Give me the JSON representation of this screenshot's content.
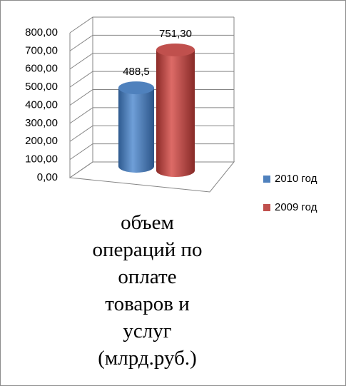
{
  "chart_data": {
    "type": "bar3d",
    "title": "объем операций по оплате товаров и услуг (млрд.руб.)",
    "categories": [
      null
    ],
    "series": [
      {
        "name": "2010 год",
        "color": "#4f81bd",
        "values": [
          488.5
        ],
        "value_labels": [
          "488,5"
        ]
      },
      {
        "name": "2009 год",
        "color": "#c0504d",
        "values": [
          751.3
        ],
        "value_labels": [
          "751,30"
        ]
      }
    ],
    "ylim": [
      0,
      800
    ],
    "yticks": [
      {
        "value": 0,
        "label": "0,00"
      },
      {
        "value": 100,
        "label": "100,00"
      },
      {
        "value": 200,
        "label": "200,00"
      },
      {
        "value": 300,
        "label": "300,00"
      },
      {
        "value": 400,
        "label": "400,00"
      },
      {
        "value": 500,
        "label": "500,00"
      },
      {
        "value": 600,
        "label": "600,00"
      },
      {
        "value": 700,
        "label": "700,00"
      },
      {
        "value": 800,
        "label": "800,00"
      }
    ],
    "grid": true,
    "legend": "right"
  }
}
